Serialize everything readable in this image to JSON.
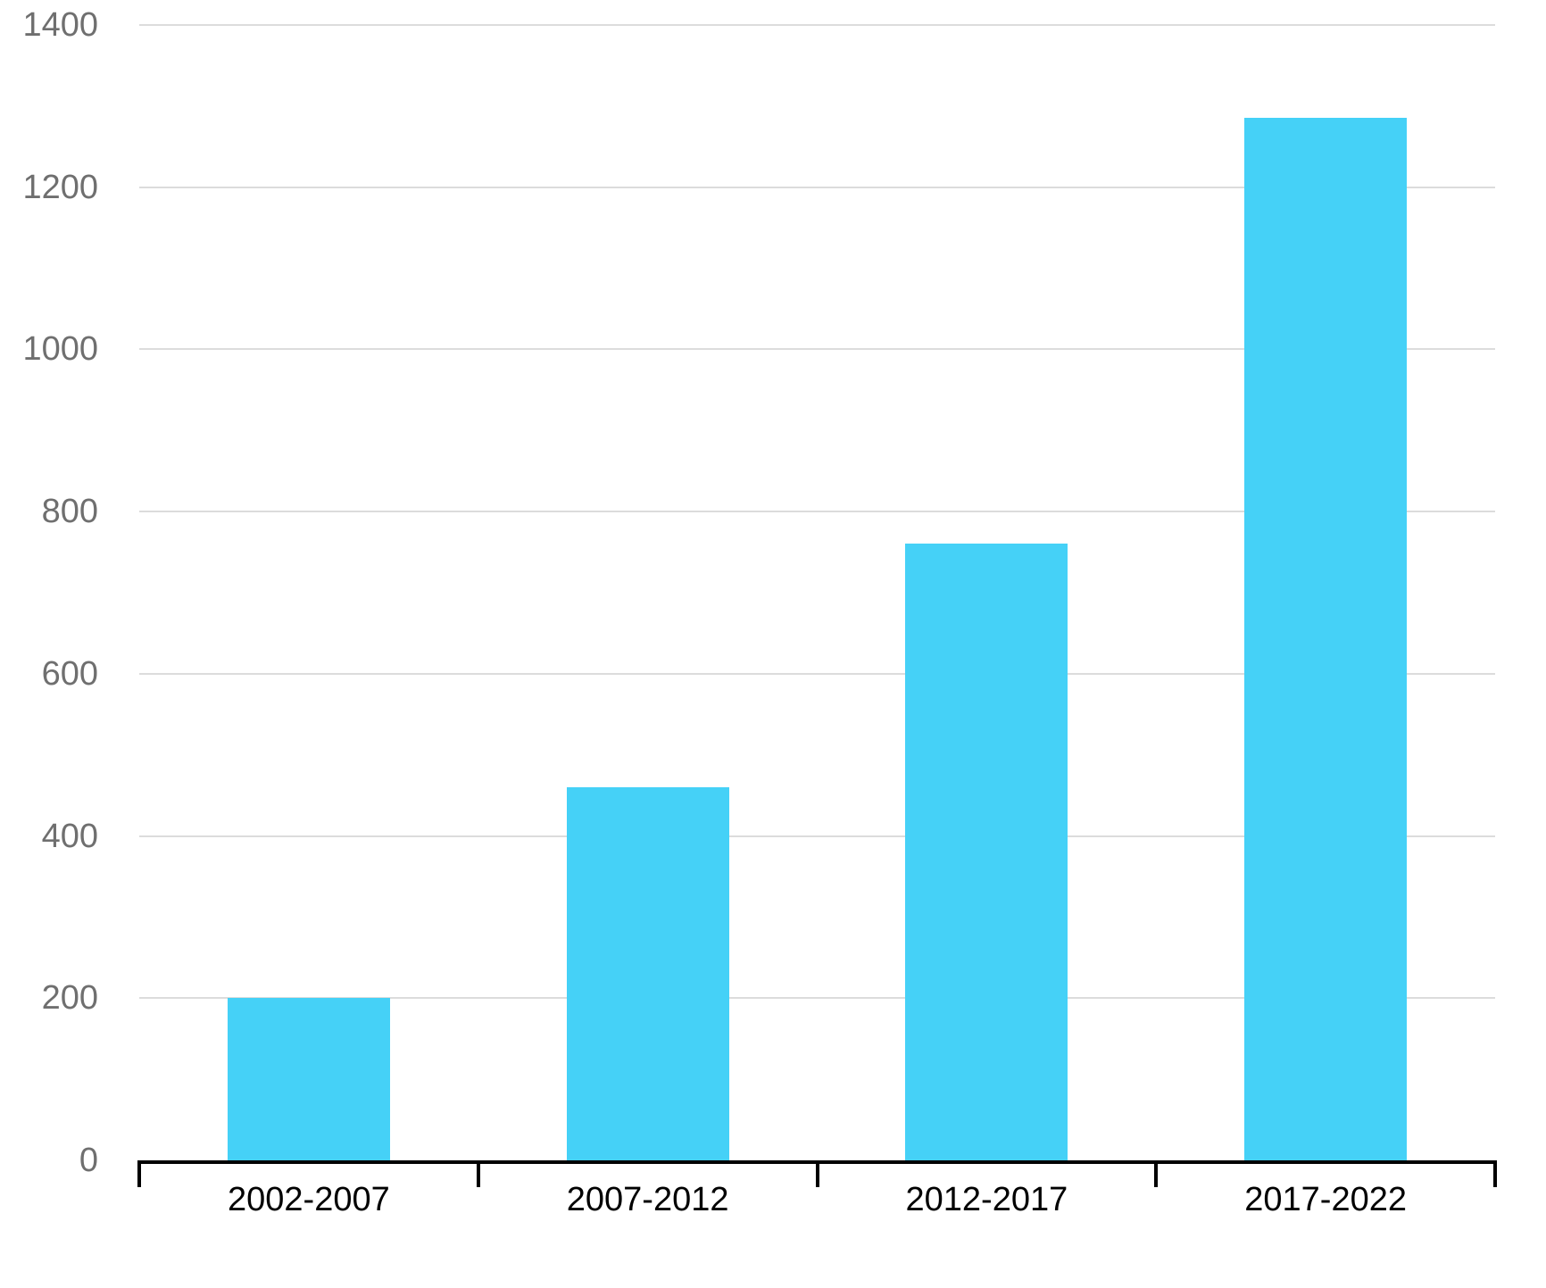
{
  "chart_data": {
    "type": "bar",
    "title": "",
    "xlabel": "",
    "ylabel": "",
    "categories": [
      "2002-2007",
      "2007-2012",
      "2012-2017",
      "2017-2022"
    ],
    "values": [
      200,
      460,
      760,
      1285
    ],
    "ylim": [
      0,
      1400
    ],
    "yticks": [
      0,
      200,
      400,
      600,
      800,
      1000,
      1200,
      1400
    ],
    "grid": true,
    "legend": false,
    "colors": {
      "bar": "#45d1f7",
      "gridline": "#dcdcdc",
      "ytick_label": "#6f6f6f",
      "xtick_label": "#000000",
      "axis": "#000000"
    }
  }
}
